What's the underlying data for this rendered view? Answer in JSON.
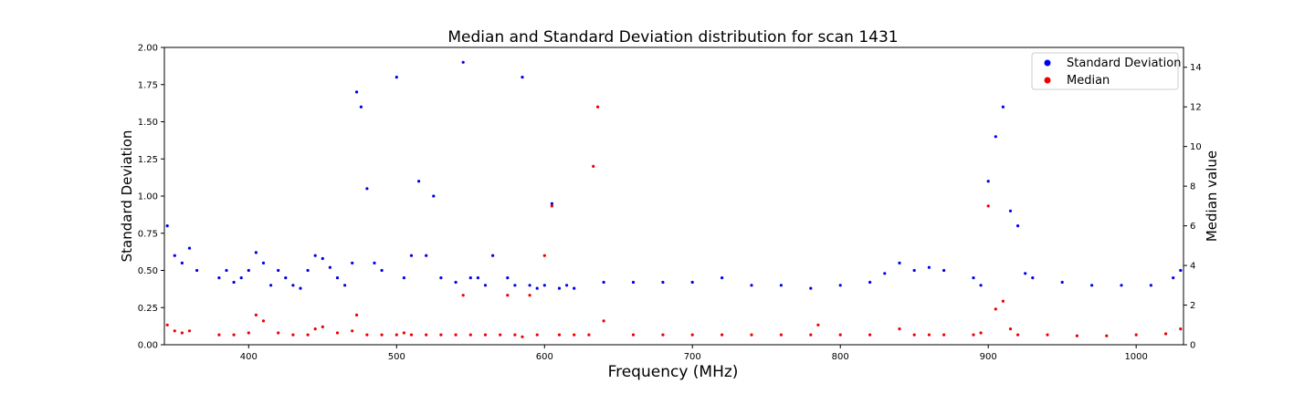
{
  "chart_data": {
    "type": "scatter",
    "title": "Median and Standard Deviation distribution for scan 1431",
    "xlabel": "Frequency (MHz)",
    "ylabel": "Standard Deviation",
    "y2label": "Median value",
    "xlim": [
      343,
      1032
    ],
    "ylim": [
      0,
      2.0
    ],
    "y2lim": [
      0,
      15
    ],
    "xticks": [
      400,
      500,
      600,
      700,
      800,
      900,
      1000
    ],
    "yticks": [
      0.0,
      0.25,
      0.5,
      0.75,
      1.0,
      1.25,
      1.5,
      1.75,
      2.0
    ],
    "y2ticks": [
      0,
      2,
      4,
      6,
      8,
      10,
      12,
      14
    ],
    "grid": false,
    "legend_position": "top-right",
    "colors": {
      "std": "#0000ee",
      "median": "#ee0000"
    },
    "legend": [
      {
        "label": "Standard Deviation",
        "color": "#0000ee"
      },
      {
        "label": "Median",
        "color": "#ee0000"
      }
    ],
    "series": [
      {
        "name": "Standard Deviation",
        "axis": "left",
        "color": "#0000ee",
        "x": [
          345,
          350,
          355,
          360,
          365,
          380,
          385,
          390,
          395,
          400,
          405,
          410,
          415,
          420,
          425,
          430,
          435,
          440,
          445,
          450,
          455,
          460,
          465,
          470,
          473,
          476,
          480,
          485,
          490,
          500,
          505,
          510,
          515,
          520,
          525,
          530,
          540,
          545,
          550,
          555,
          560,
          565,
          575,
          580,
          585,
          590,
          595,
          600,
          605,
          610,
          615,
          620,
          640,
          660,
          680,
          700,
          720,
          740,
          760,
          780,
          800,
          820,
          830,
          840,
          850,
          860,
          870,
          890,
          895,
          900,
          905,
          910,
          915,
          920,
          925,
          930,
          950,
          970,
          990,
          1010,
          1025,
          1030
        ],
        "y": [
          0.8,
          0.6,
          0.55,
          0.65,
          0.5,
          0.45,
          0.5,
          0.42,
          0.45,
          0.5,
          0.62,
          0.55,
          0.4,
          0.5,
          0.45,
          0.4,
          0.38,
          0.5,
          0.6,
          0.58,
          0.52,
          0.45,
          0.4,
          0.55,
          1.7,
          1.6,
          1.05,
          0.55,
          0.5,
          1.8,
          0.45,
          0.6,
          1.1,
          0.6,
          1.0,
          0.45,
          0.42,
          1.9,
          0.45,
          0.45,
          0.4,
          0.6,
          0.45,
          0.4,
          1.8,
          0.4,
          0.38,
          0.4,
          0.95,
          0.38,
          0.4,
          0.38,
          0.42,
          0.42,
          0.42,
          0.42,
          0.45,
          0.4,
          0.4,
          0.38,
          0.4,
          0.42,
          0.48,
          0.55,
          0.5,
          0.52,
          0.5,
          0.45,
          0.4,
          1.1,
          1.4,
          1.6,
          0.9,
          0.8,
          0.48,
          0.45,
          0.42,
          0.4,
          0.4,
          0.4,
          0.45,
          0.5
        ]
      },
      {
        "name": "Median",
        "axis": "right",
        "color": "#ee0000",
        "x": [
          345,
          350,
          355,
          360,
          380,
          390,
          400,
          405,
          410,
          420,
          430,
          440,
          445,
          450,
          460,
          470,
          473,
          480,
          490,
          500,
          505,
          510,
          520,
          530,
          540,
          545,
          550,
          560,
          570,
          575,
          580,
          585,
          590,
          595,
          600,
          605,
          610,
          620,
          630,
          633,
          636,
          640,
          660,
          680,
          700,
          720,
          740,
          760,
          780,
          785,
          800,
          820,
          840,
          850,
          860,
          870,
          890,
          895,
          900,
          905,
          910,
          915,
          920,
          940,
          960,
          980,
          1000,
          1020,
          1030
        ],
        "y": [
          1.0,
          0.7,
          0.6,
          0.7,
          0.5,
          0.5,
          0.6,
          1.5,
          1.2,
          0.6,
          0.5,
          0.5,
          0.8,
          0.9,
          0.6,
          0.7,
          1.5,
          0.5,
          0.5,
          0.5,
          0.6,
          0.5,
          0.5,
          0.5,
          0.5,
          2.5,
          0.5,
          0.5,
          0.5,
          2.5,
          0.5,
          0.4,
          2.5,
          0.5,
          4.5,
          7.0,
          0.5,
          0.5,
          0.5,
          9.0,
          12.0,
          1.2,
          0.5,
          0.5,
          0.5,
          0.5,
          0.5,
          0.5,
          0.5,
          1.0,
          0.5,
          0.5,
          0.8,
          0.5,
          0.5,
          0.5,
          0.5,
          0.6,
          7.0,
          1.8,
          2.2,
          0.8,
          0.5,
          0.5,
          0.45,
          0.45,
          0.5,
          0.55,
          0.8
        ]
      }
    ]
  }
}
